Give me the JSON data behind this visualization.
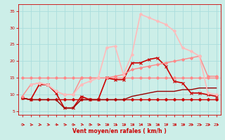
{
  "bg_color": "#cceee8",
  "grid_color": "#aadddd",
  "xlabel": "Vent moyen/en rafales ( km/h )",
  "xlabel_color": "#cc0000",
  "tick_color": "#cc0000",
  "xlim": [
    -0.5,
    23.5
  ],
  "ylim": [
    4,
    37
  ],
  "yticks": [
    5,
    10,
    15,
    20,
    25,
    30,
    35
  ],
  "xticks": [
    0,
    1,
    2,
    3,
    4,
    5,
    6,
    7,
    8,
    9,
    10,
    11,
    12,
    13,
    14,
    15,
    16,
    17,
    18,
    19,
    20,
    21,
    22,
    23
  ],
  "lines": [
    {
      "x": [
        0,
        1,
        2,
        3,
        4,
        5,
        6,
        7,
        8,
        9,
        10,
        11,
        12,
        13,
        14,
        15,
        16,
        17,
        18,
        19,
        20,
        21,
        22,
        23
      ],
      "y": [
        15,
        15,
        15,
        15,
        15,
        15,
        15,
        15,
        15,
        15,
        15,
        15,
        15,
        15,
        15,
        15,
        15,
        15,
        15,
        15,
        15,
        15,
        15,
        15
      ],
      "color": "#ff8888",
      "lw": 1.0,
      "marker": "D",
      "ms": 2.0
    },
    {
      "x": [
        0,
        1,
        2,
        3,
        4,
        5,
        6,
        7,
        8,
        9,
        10,
        11,
        12,
        13,
        14,
        15,
        16,
        17,
        18,
        19,
        20,
        21,
        22,
        23
      ],
      "y": [
        9,
        8.5,
        8.5,
        8.5,
        8.5,
        8.5,
        8.5,
        8.5,
        8.5,
        8.5,
        8.5,
        8.5,
        8.5,
        8.5,
        8.5,
        8.5,
        8.5,
        8.5,
        8.5,
        8.5,
        8.5,
        8.5,
        8.5,
        8.5
      ],
      "color": "#cc0000",
      "lw": 1.0,
      "marker": "D",
      "ms": 2.0
    },
    {
      "x": [
        0,
        1,
        2,
        3,
        4,
        5,
        6,
        7,
        8,
        9,
        10,
        11,
        12,
        13,
        14,
        15,
        16,
        17,
        18,
        19,
        20,
        21,
        22,
        23
      ],
      "y": [
        9,
        8.5,
        13,
        13,
        10.5,
        6,
        6,
        9.5,
        8.5,
        8.5,
        15,
        14.5,
        14.5,
        19.5,
        19.5,
        20.5,
        21,
        18.5,
        14,
        13.5,
        10.5,
        10.5,
        10,
        9.5
      ],
      "color": "#cc0000",
      "lw": 1.2,
      "marker": "x",
      "ms": 3.5
    },
    {
      "x": [
        0,
        1,
        2,
        3,
        4,
        5,
        6,
        7,
        8,
        9,
        10,
        11,
        12,
        13,
        14,
        15,
        16,
        17,
        18,
        19,
        20,
        21,
        22,
        23
      ],
      "y": [
        9,
        8.5,
        8.5,
        8.5,
        8.5,
        6,
        6,
        8.5,
        8.5,
        8.5,
        8.5,
        8.5,
        8.5,
        9.5,
        10,
        10.5,
        11,
        11,
        11,
        11.5,
        11.5,
        12,
        12,
        12
      ],
      "color": "#990000",
      "lw": 1.0,
      "marker": null,
      "ms": 0
    },
    {
      "x": [
        0,
        1,
        2,
        3,
        4,
        5,
        6,
        7,
        8,
        9,
        10,
        11,
        12,
        13,
        14,
        15,
        16,
        17,
        18,
        19,
        20,
        21,
        22,
        23
      ],
      "y": [
        9.5,
        13,
        13.5,
        13,
        11,
        10,
        10,
        15,
        15,
        15,
        15,
        15.5,
        16,
        17.5,
        18,
        18.5,
        19,
        19.5,
        20,
        20.5,
        21,
        21.5,
        15.5,
        15.5
      ],
      "color": "#ff8888",
      "lw": 1.0,
      "marker": "D",
      "ms": 2.0
    },
    {
      "x": [
        1,
        2,
        3,
        4,
        5,
        6,
        7,
        8,
        9,
        10,
        11,
        12,
        13,
        14,
        15,
        16,
        17,
        18,
        19,
        20,
        21,
        22,
        23
      ],
      "y": [
        13,
        13.5,
        13,
        11,
        10,
        10,
        13,
        14,
        15,
        24,
        24.5,
        16,
        22,
        34,
        33,
        32,
        31,
        29,
        24,
        23,
        21.5,
        10.5,
        10
      ],
      "color": "#ffbbbb",
      "lw": 1.2,
      "marker": "D",
      "ms": 2.0
    }
  ]
}
